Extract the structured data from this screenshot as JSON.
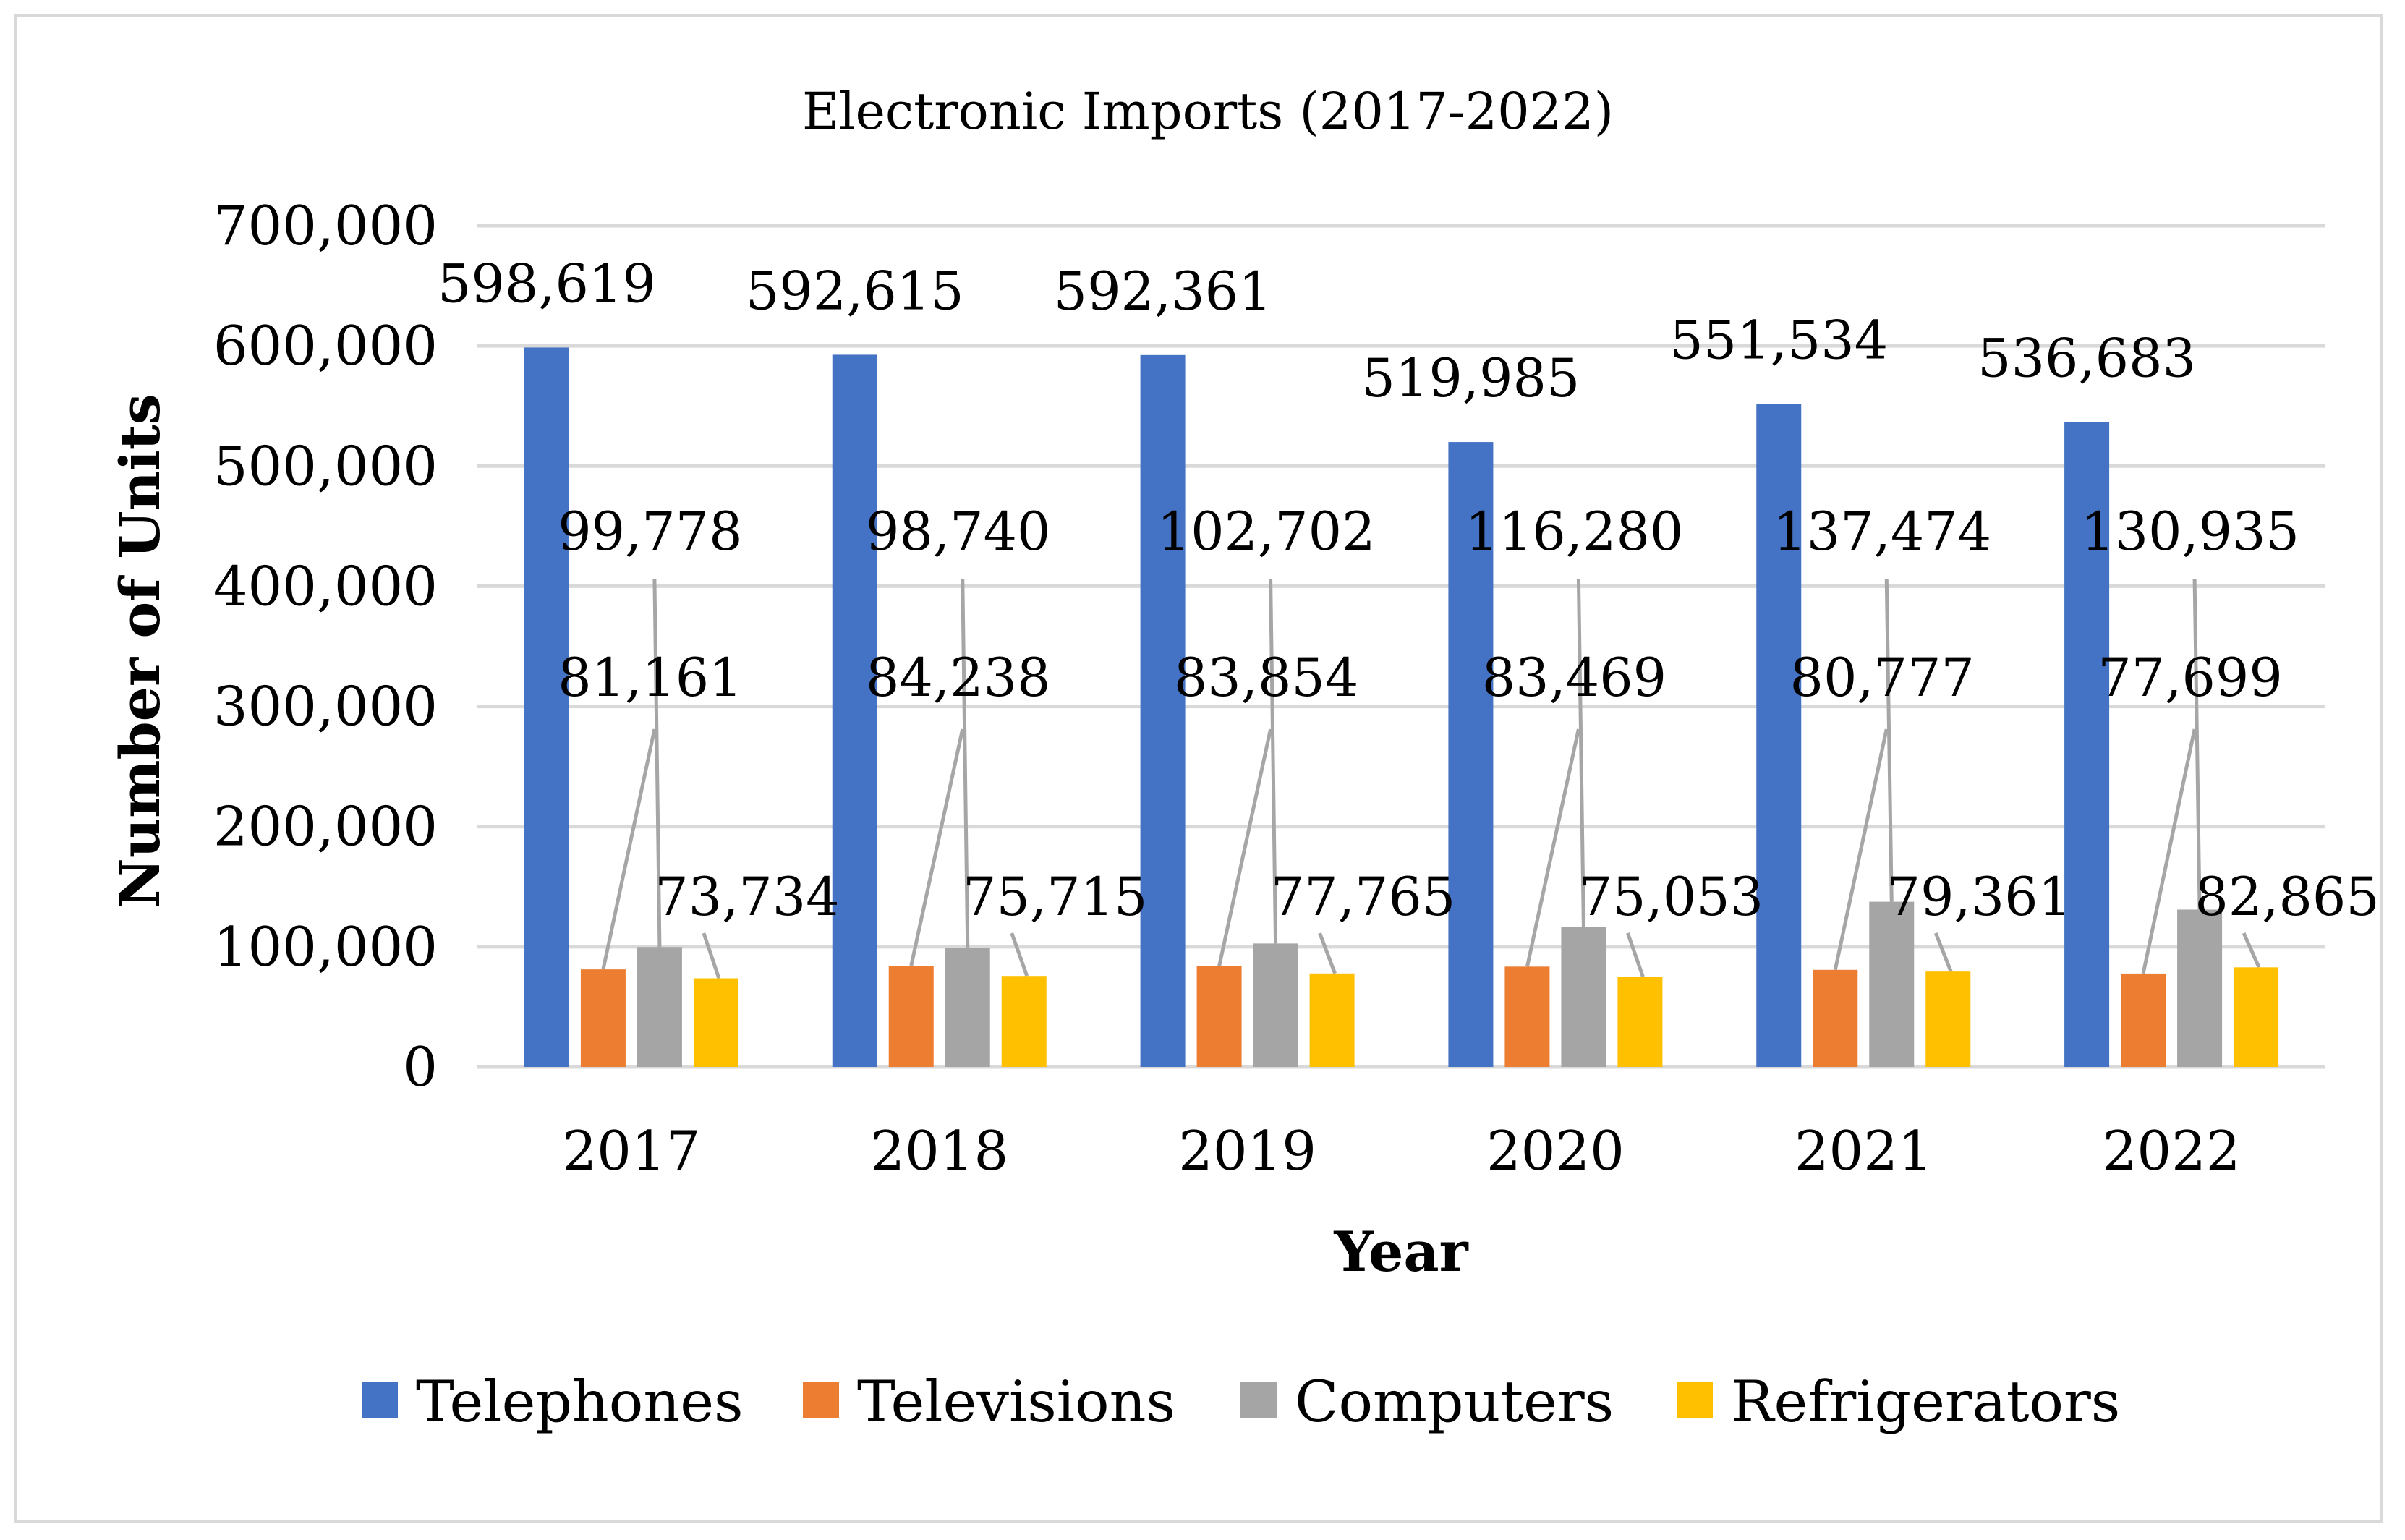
{
  "chart_data": {
    "type": "bar",
    "title": "Electronic Imports (2017-2022)",
    "xlabel": "Year",
    "ylabel": "Number of Units",
    "ylim": [
      0,
      700000
    ],
    "ytick_step": 100000,
    "ytick_labels": [
      "0",
      "100,000",
      "200,000",
      "300,000",
      "400,000",
      "500,000",
      "600,000",
      "700,000"
    ],
    "categories": [
      "2017",
      "2018",
      "2019",
      "2020",
      "2021",
      "2022"
    ],
    "grid": true,
    "legend_position": "bottom",
    "series": [
      {
        "name": "Telephones",
        "color": "#4472C4",
        "values": [
          598619,
          592615,
          592361,
          519985,
          551534,
          536683
        ],
        "labels": [
          "598,619",
          "592,615",
          "592,361",
          "519,985",
          "551,534",
          "536,683"
        ]
      },
      {
        "name": "Televisions",
        "color": "#ED7D31",
        "values": [
          81161,
          84238,
          83854,
          83469,
          80777,
          77699
        ],
        "labels": [
          "81,161",
          "84,238",
          "83,854",
          "83,469",
          "80,777",
          "77,699"
        ]
      },
      {
        "name": "Computers",
        "color": "#A5A5A5",
        "values": [
          99778,
          98740,
          102702,
          116280,
          137474,
          130935
        ],
        "labels": [
          "99,778",
          "98,740",
          "102,702",
          "116,280",
          "137,474",
          "130,935"
        ]
      },
      {
        "name": "Refrigerators",
        "color": "#FFC000",
        "values": [
          73734,
          75715,
          77765,
          75053,
          79361,
          82865
        ],
        "labels": [
          "73,734",
          "75,715",
          "77,765",
          "75,053",
          "79,361",
          "82,865"
        ]
      }
    ]
  }
}
